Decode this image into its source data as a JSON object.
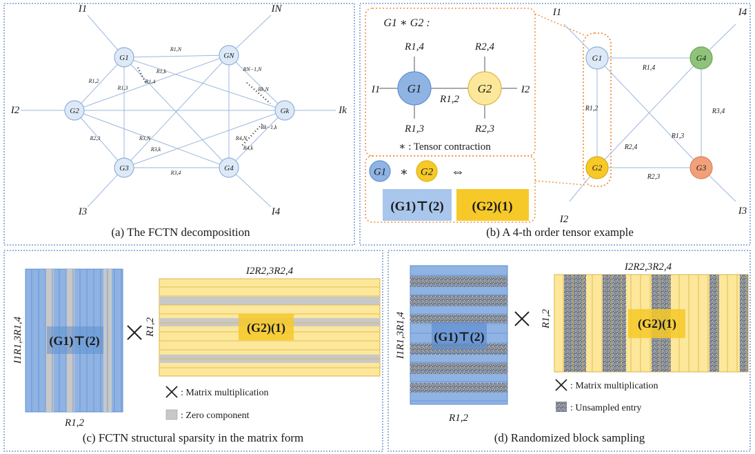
{
  "colors": {
    "panel_border": "#5b86c9",
    "node_fill": "#dde9f7",
    "node_stroke": "#8fb0d9",
    "edge": "#9bb7dd",
    "blue": "#8fb3e3",
    "blue_dark": "#5f8fd0",
    "yellow": "#fce79a",
    "yellow_dark": "#f6c928",
    "green": "#8fc37a",
    "orange_node": "#f1a07a",
    "orange_dash": "#ee8c3a",
    "gray": "#c8c8c8"
  },
  "panel_a": {
    "caption": "(a) The FCTN decomposition",
    "nodes": {
      "g1": "G1",
      "gN": "GN",
      "g2": "G2",
      "gk": "Gk",
      "g3": "G3",
      "g4": "G4"
    },
    "indices": {
      "i1": "I1",
      "iN": "IN",
      "i2": "I2",
      "ik": "Ik",
      "i3": "I3",
      "i4": "I4"
    },
    "edges": {
      "r1N": "R1,N",
      "r12": "R1,2",
      "r13": "R1,3",
      "r1k": "R1,k",
      "r14": "R1,4",
      "rN1N": "RN−1,N",
      "rkN": "Rk,N",
      "rk1k": "Rk−1,k",
      "r23": "R2,3",
      "r3N": "R3,N",
      "r3k": "R3,k",
      "r4N": "R4,N",
      "r4k": "R4,k",
      "r34": "R3,4"
    }
  },
  "panel_b": {
    "caption": "(b) A 4-th order tensor example",
    "contraction_title": "G1 ∗ G2 :",
    "contraction_legend": "∗ : Tensor contraction",
    "equiv": "⇔",
    "star": "∗",
    "mat1": "(G1)⊤(2)",
    "mat2": "(G2)(1)",
    "small": {
      "top_left": "R1,4",
      "top_right": "R2,4",
      "left": "I1",
      "mid": "R1,2",
      "right": "I2",
      "bot_left": "R1,3",
      "bot_right": "R2,3"
    },
    "nodes": {
      "g1": "G1",
      "g2": "G2",
      "g3": "G3",
      "g4": "G4"
    },
    "indices": {
      "i1": "I1",
      "i2": "I2",
      "i3": "I3",
      "i4": "I4"
    },
    "edges": {
      "r14": "R1,4",
      "r12": "R1,2",
      "r13": "R1,3",
      "r24": "R2,4",
      "r34": "R3,4",
      "r23": "R2,3"
    }
  },
  "panel_c": {
    "caption": "(c) FCTN structural sparsity in the matrix form",
    "left_ylabel": "I1R1,3R1,4",
    "left_xlabel": "R1,2",
    "right_ylabel": "R1,2",
    "right_xlabel": "I2R2,3R2,4",
    "mat1": "(G1)⊤(2)",
    "mat2": "(G2)(1)",
    "legend_mult": ": Matrix multiplication",
    "legend_zero": ": Zero component"
  },
  "panel_d": {
    "caption": "(d) Randomized block sampling",
    "left_ylabel": "I1R1,3R1,4",
    "left_xlabel": "R1,2",
    "right_ylabel": "R1,2",
    "right_xlabel": "I2R2,3R2,4",
    "mat1": "(G1)⊤(2)",
    "mat2": "(G2)(1)",
    "legend_mult": ": Matrix multiplication",
    "legend_unsampled": ": Unsampled entry"
  }
}
